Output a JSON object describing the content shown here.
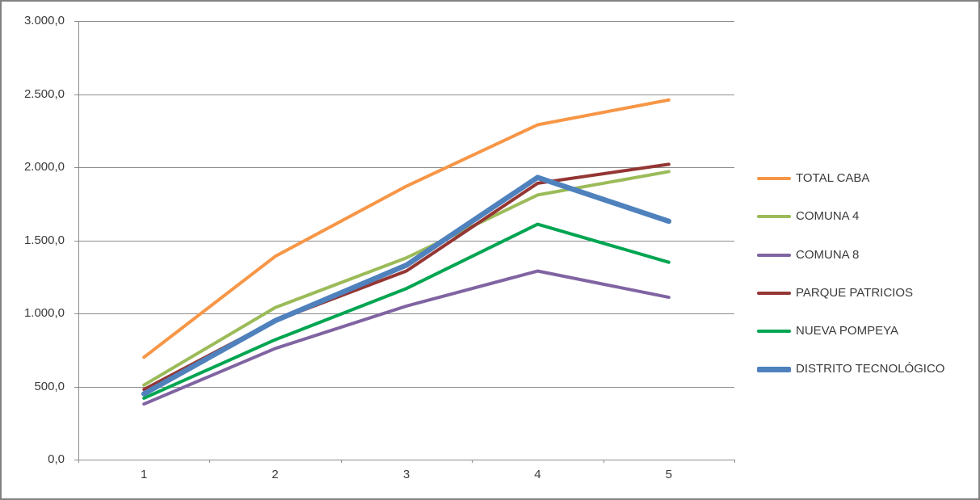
{
  "window": {
    "background_color": "#FFFFFF",
    "border_color": "#818181"
  },
  "chart_data": {
    "type": "line",
    "title": "",
    "xlabel": "",
    "ylabel": "",
    "categories": [
      1,
      2,
      3,
      4,
      5
    ],
    "x_labels": [
      "1",
      "2",
      "3",
      "4",
      "5"
    ],
    "y_tick_labels": [
      "3.000,0",
      "2.500,0",
      "2.000,0",
      "1.500,0",
      "1.000,0",
      "500,0",
      "0,0"
    ],
    "ylim": [
      0,
      3000
    ],
    "y_tick_step": 500,
    "grid": true,
    "gridline_color": "#8C8C8C",
    "axis_color": "#8C8C8C",
    "legend_position": "right",
    "series": [
      {
        "name": "TOTAL CABA",
        "color": "#F79646",
        "line_width": 4,
        "values": [
          700,
          1390,
          1870,
          2290,
          2460
        ]
      },
      {
        "name": "COMUNA 4",
        "color": "#9BBB59",
        "line_width": 4,
        "values": [
          510,
          1040,
          1380,
          1810,
          1970
        ]
      },
      {
        "name": "COMUNA 8",
        "color": "#8064A2",
        "line_width": 4,
        "values": [
          380,
          760,
          1050,
          1290,
          1110
        ]
      },
      {
        "name": "PARQUE PATRICIOS",
        "color": "#943634",
        "line_width": 4,
        "values": [
          480,
          950,
          1290,
          1890,
          2020
        ]
      },
      {
        "name": "NUEVA POMPEYA",
        "color": "#00A551",
        "line_width": 4,
        "values": [
          420,
          820,
          1170,
          1610,
          1350
        ]
      },
      {
        "name": "DISTRITO TECNOLÓGICO",
        "color": "#4F81BD",
        "line_width": 6.5,
        "values": [
          450,
          950,
          1330,
          1930,
          1630
        ]
      }
    ]
  }
}
